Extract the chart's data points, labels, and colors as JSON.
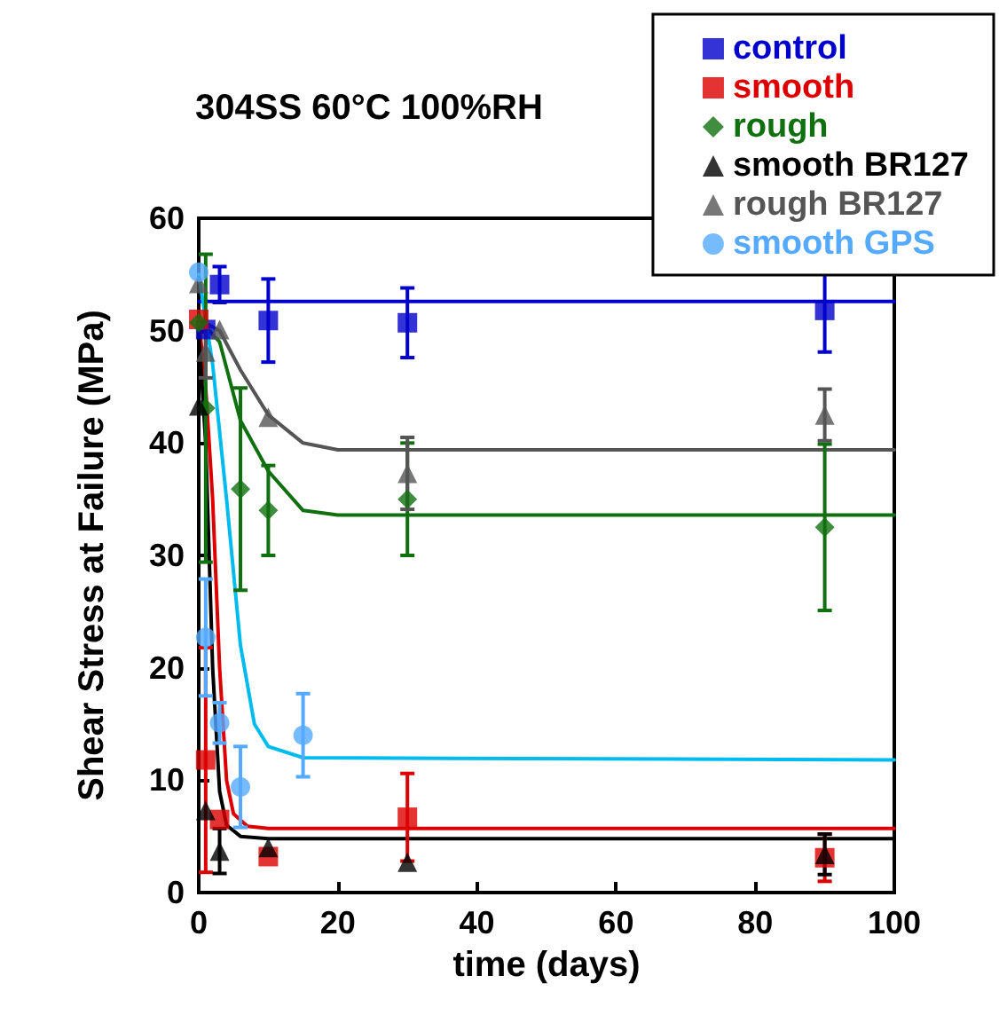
{
  "chart_data": {
    "type": "scatter",
    "title": "304SS 60°C 100%RH",
    "xlabel": "time (days)",
    "ylabel": "Shear Stress at Failure (MPa)",
    "xlim": [
      0,
      100
    ],
    "xticks": [
      0,
      20,
      40,
      60,
      80,
      100
    ],
    "ylim": [
      0,
      60
    ],
    "yticks": [
      0,
      10,
      20,
      30,
      40,
      50,
      60
    ],
    "grid": false,
    "legend": "top right",
    "series": [
      {
        "type": "line",
        "color": "#0000cc",
        "x": [
          0,
          100
        ],
        "values": [
          52.6,
          52.6
        ]
      },
      {
        "type": "line",
        "color": "#555555",
        "x": [
          0,
          3,
          6,
          10,
          15,
          20,
          100
        ],
        "values": [
          51,
          50,
          46.5,
          42.5,
          40,
          39.4,
          39.4
        ]
      },
      {
        "type": "line",
        "color": "#107010",
        "x": [
          0,
          3,
          6,
          10,
          15,
          20,
          100
        ],
        "values": [
          51,
          49,
          42,
          37.5,
          34,
          33.6,
          33.6
        ]
      },
      {
        "type": "line",
        "color": "#00bbee",
        "x": [
          0,
          2,
          4,
          6,
          8,
          10,
          15,
          100
        ],
        "values": [
          55,
          47,
          35,
          22,
          15,
          13,
          12,
          11.8
        ]
      },
      {
        "type": "line",
        "color": "#dd0000",
        "x": [
          0,
          1,
          2,
          3,
          4,
          5,
          7,
          10,
          100
        ],
        "values": [
          51,
          45,
          35,
          20,
          10,
          7,
          5.9,
          5.7,
          5.7
        ]
      },
      {
        "type": "line",
        "color": "#000000",
        "x": [
          0,
          1,
          2,
          3,
          4,
          6,
          10,
          100
        ],
        "values": [
          50,
          40,
          20,
          9,
          6,
          5,
          4.8,
          4.8
        ]
      },
      {
        "name": "control",
        "marker": "square",
        "color": "#0000cc",
        "x": [
          1,
          3,
          10,
          30,
          90
        ],
        "values": [
          50.1,
          54.1,
          50.9,
          50.7,
          51.8
        ],
        "errors": [
          null,
          1.6,
          3.7,
          3.1,
          3.7
        ]
      },
      {
        "name": "smooth",
        "marker": "square",
        "color": "#dd0000",
        "x": [
          0,
          1,
          3,
          10,
          30,
          90
        ],
        "values": [
          51,
          11.8,
          6.5,
          3.2,
          6.7,
          3.1
        ],
        "errors": [
          null,
          10,
          null,
          null,
          3.9,
          2.1
        ]
      },
      {
        "name": "rough",
        "marker": "diamond",
        "color": "#107010",
        "x": [
          0,
          1,
          6,
          10,
          30,
          90
        ],
        "values": [
          50.7,
          43.1,
          35.9,
          34,
          35,
          32.5
        ],
        "errors": [
          null,
          13.7,
          9,
          4,
          5,
          7.4
        ]
      },
      {
        "name": "smooth BR127",
        "marker": "triangle",
        "color": "#000000",
        "x": [
          0,
          1,
          3,
          10,
          30,
          90
        ],
        "values": [
          43.3,
          7.3,
          3.7,
          4,
          2.7,
          3.4
        ],
        "errors": [
          null,
          null,
          2,
          null,
          null,
          1.8
        ]
      },
      {
        "name": "rough BR127",
        "marker": "triangle",
        "color": "#555555",
        "x": [
          0,
          1,
          3,
          10,
          30,
          90
        ],
        "values": [
          54.2,
          48.1,
          50.1,
          42.3,
          37.3,
          42.5
        ],
        "errors": [
          null,
          2.3,
          null,
          null,
          3.2,
          2.3
        ]
      },
      {
        "name": "smooth GPS",
        "marker": "circle",
        "color": "#55aaff",
        "x": [
          0,
          1,
          3,
          6,
          15
        ],
        "values": [
          55.2,
          22.7,
          15.1,
          9.4,
          14
        ],
        "errors": [
          null,
          5.2,
          1.8,
          3.6,
          3.7
        ]
      }
    ]
  }
}
